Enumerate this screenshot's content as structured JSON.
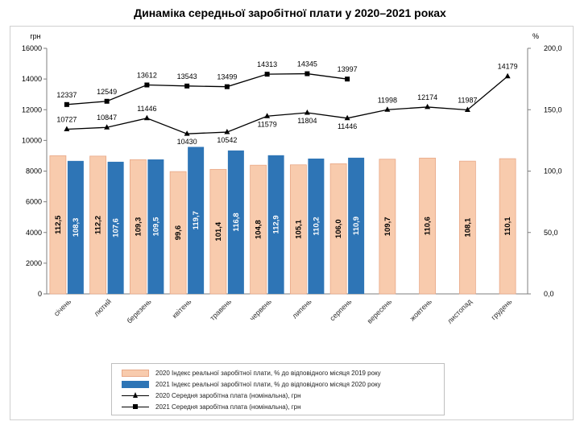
{
  "title": "Динаміка середньої заробітної плати у 2020–2021 роках",
  "colors": {
    "bar2020": "#f8cbad",
    "bar2020_stroke": "#e8a887",
    "bar2021": "#2e75b6",
    "line": "#000000"
  },
  "chart_data": {
    "type": "bar",
    "categories": [
      "січень",
      "лютий",
      "березень",
      "квітень",
      "травень",
      "червень",
      "липень",
      "серпень",
      "вересень",
      "жовтень",
      "листопад",
      "грудень"
    ],
    "left_axis": {
      "unit": "грн",
      "ylim": [
        0,
        16000
      ],
      "ticks": [
        "0",
        "2000",
        "4000",
        "6000",
        "8000",
        "10000",
        "12000",
        "14000",
        "16000"
      ]
    },
    "right_axis": {
      "unit": "%",
      "ylim": [
        0,
        200
      ],
      "ticks": [
        "0,0",
        "50,0",
        "100,0",
        "150,0",
        "200,0"
      ]
    },
    "bars": [
      {
        "name": "2020 Індекс реальної заробітної плати, % до відповідного  місяця 2019 року",
        "axis": "right",
        "values": [
          112.5,
          112.2,
          109.3,
          99.6,
          101.4,
          104.8,
          105.1,
          106.0,
          109.7,
          110.6,
          108.1,
          110.1
        ],
        "labels": [
          "112,5",
          "112,2",
          "109,3",
          "99,6",
          "101,4",
          "104,8",
          "105,1",
          "106,0",
          "109,7",
          "110,6",
          "108,1",
          "110,1"
        ]
      },
      {
        "name": "2021 Індекс реальної заробітної плати, % до відповідного  місяця 2020 року",
        "axis": "right",
        "values": [
          108.3,
          107.6,
          109.5,
          119.7,
          116.8,
          112.9,
          110.2,
          110.9,
          null,
          null,
          null,
          null
        ],
        "labels": [
          "108,3",
          "107,6",
          "109,5",
          "119,7",
          "116,8",
          "112,9",
          "110,2",
          "110,9",
          "",
          "",
          "",
          ""
        ]
      }
    ],
    "lines": [
      {
        "name": "2020 Середня заробітна плата (номінальна), грн",
        "axis": "left",
        "marker": "triangle",
        "values": [
          10727,
          10847,
          11446,
          10430,
          10542,
          11579,
          11804,
          11446,
          11998,
          12174,
          11987,
          14179
        ],
        "labels": [
          "10727",
          "10847",
          "11446",
          "10430",
          "10542",
          "11579",
          "11804",
          "11446",
          "11998",
          "12174",
          "11987",
          "14179"
        ]
      },
      {
        "name": "2021 Середня заробітна плата (номінальна), грн",
        "axis": "left",
        "marker": "square",
        "values": [
          12337,
          12549,
          13612,
          13543,
          13499,
          14313,
          14345,
          13997,
          null,
          null,
          null,
          null
        ],
        "labels": [
          "12337",
          "12549",
          "13612",
          "13543",
          "13499",
          "14313",
          "14345",
          "13997",
          "",
          "",
          "",
          ""
        ]
      }
    ],
    "legend_position": "bottom",
    "grid": false
  }
}
